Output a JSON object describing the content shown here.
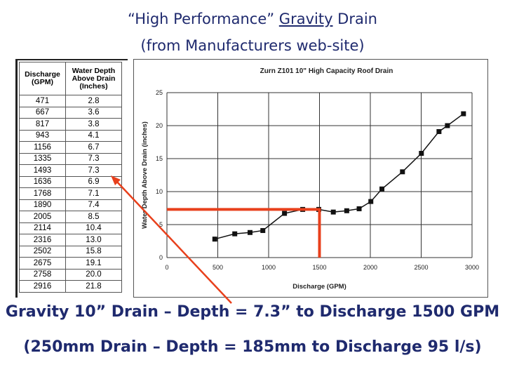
{
  "title_line1_prefix": "“High Performance” ",
  "title_line1_underlined": "Gravity",
  "title_line1_suffix": " Drain",
  "title_line2": "(from Manufacturers web-site)",
  "table": {
    "headers": [
      "Discharge (GPM)",
      "Water Depth Above Drain (Inches)"
    ],
    "rows": [
      [
        "471",
        "2.8"
      ],
      [
        "667",
        "3.6"
      ],
      [
        "817",
        "3.8"
      ],
      [
        "943",
        "4.1"
      ],
      [
        "1156",
        "6.7"
      ],
      [
        "1335",
        "7.3"
      ],
      [
        "1493",
        "7.3"
      ],
      [
        "1636",
        "6.9"
      ],
      [
        "1768",
        "7.1"
      ],
      [
        "1890",
        "7.4"
      ],
      [
        "2005",
        "8.5"
      ],
      [
        "2114",
        "10.4"
      ],
      [
        "2316",
        "13.0"
      ],
      [
        "2502",
        "15.8"
      ],
      [
        "2675",
        "19.1"
      ],
      [
        "2758",
        "20.0"
      ],
      [
        "2916",
        "21.8"
      ]
    ]
  },
  "chart_data": {
    "type": "line",
    "title": "Zurn Z101 10\" High Capacity Roof Drain",
    "xlabel": "Discharge (GPM)",
    "ylabel": "Water Depth Above Drain (inches)",
    "xlim": [
      0,
      3000
    ],
    "ylim": [
      0,
      25
    ],
    "xticks": [
      0,
      500,
      1000,
      1500,
      2000,
      2500,
      3000
    ],
    "yticks": [
      0,
      5,
      10,
      15,
      20,
      25
    ],
    "x": [
      471,
      667,
      817,
      943,
      1156,
      1335,
      1493,
      1636,
      1768,
      1890,
      2005,
      2114,
      2316,
      2502,
      2675,
      2758,
      2916
    ],
    "y": [
      2.8,
      3.6,
      3.8,
      4.1,
      6.7,
      7.3,
      7.3,
      6.9,
      7.1,
      7.4,
      8.5,
      10.4,
      13.0,
      15.8,
      19.1,
      20.0,
      21.8
    ],
    "marker_point": {
      "x": 1500,
      "y": 7.3
    },
    "annotation_color": "#e8401c",
    "arrow_color": "#e8401c"
  },
  "caption_line1": "Gravity 10” Drain – Depth = 7.3” to Discharge 1500 GPM",
  "caption_line2": "(250mm Drain – Depth = 185mm to Discharge 95 l/s)"
}
